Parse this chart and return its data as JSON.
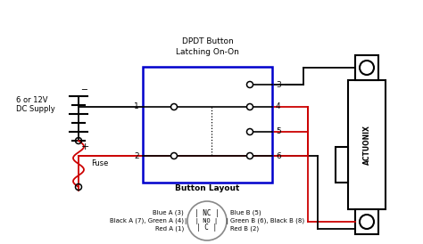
{
  "title": "DPDT Button\nLatching On-On",
  "bg_color": "#ffffff",
  "battery_text": "6 or 12V\nDC Supply",
  "fuse_text": "Fuse",
  "actuonix_text": "ACTUONIX",
  "button_layout_title": "Button Layout",
  "button_layout_labels": {
    "top_left": "Blue A (3)",
    "mid_left": "Black A (7), Green A (4)",
    "bot_left": "Red A (1)",
    "top_right": "Blue B (5)",
    "mid_right": "Green B (6), Black B (8)",
    "bot_right": "Red B (2)"
  },
  "wire_black_color": "#000000",
  "wire_red_color": "#cc0000",
  "box_color": "#0000cc"
}
